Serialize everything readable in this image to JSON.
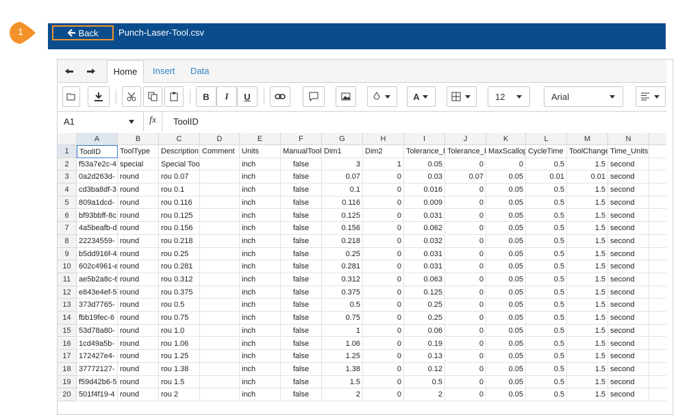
{
  "callout": "1",
  "header": {
    "back": "Back",
    "filename": "Punch-Laser-Tool.csv"
  },
  "tabs": [
    "Home",
    "Insert",
    "Data"
  ],
  "toolbar": {
    "bold": "B",
    "italic": "I",
    "underline": "U",
    "font_color": "A",
    "font_size": "12",
    "font": "Arial"
  },
  "formula_bar": {
    "cell": "A1",
    "fx": "fx",
    "content": "ToolID"
  },
  "grid": {
    "columns": [
      "A",
      "B",
      "C",
      "D",
      "E",
      "F",
      "G",
      "H",
      "I",
      "J",
      "K",
      "L",
      "M",
      "N"
    ],
    "rows": [
      {
        "num": 1,
        "cells": [
          "ToolID",
          "ToolType",
          "Description",
          "Comment",
          "Units",
          "ManualTool",
          "Dim1",
          "Dim2",
          "Tolerance_I",
          "Tolerance_I",
          "MaxScallop",
          "CycleTime",
          "ToolChange",
          "Time_Units"
        ]
      },
      {
        "num": 2,
        "cells": [
          "f53a7e2c-4",
          "special",
          "Special Too",
          null,
          "inch",
          "false",
          "3",
          "1",
          "0.05",
          "0",
          "0",
          "0.5",
          "1.5",
          "second"
        ]
      },
      {
        "num": 3,
        "cells": [
          "0a2d263d-",
          "round",
          "rou 0.07",
          null,
          "inch",
          "false",
          "0.07",
          "0",
          "0.03",
          "0.07",
          "0.05",
          "0.01",
          "0.01",
          "second"
        ]
      },
      {
        "num": 4,
        "cells": [
          "cd3ba8df-3",
          "round",
          "rou 0.1",
          null,
          "inch",
          "false",
          "0.1",
          "0",
          "0.016",
          "0",
          "0.05",
          "0.5",
          "1.5",
          "second"
        ]
      },
      {
        "num": 5,
        "cells": [
          "809a1dcd-",
          "round",
          "rou 0.116",
          null,
          "inch",
          "false",
          "0.116",
          "0",
          "0.009",
          "0",
          "0.05",
          "0.5",
          "1.5",
          "second"
        ]
      },
      {
        "num": 6,
        "cells": [
          "bf93bbff-8c",
          "round",
          "rou 0.125",
          null,
          "inch",
          "false",
          "0.125",
          "0",
          "0.031",
          "0",
          "0.05",
          "0.5",
          "1.5",
          "second"
        ]
      },
      {
        "num": 7,
        "cells": [
          "4a5beafb-d",
          "round",
          "rou 0.156",
          null,
          "inch",
          "false",
          "0.156",
          "0",
          "0.062",
          "0",
          "0.05",
          "0.5",
          "1.5",
          "second"
        ]
      },
      {
        "num": 8,
        "cells": [
          "22234559-",
          "round",
          "rou 0.218",
          null,
          "inch",
          "false",
          "0.218",
          "0",
          "0.032",
          "0",
          "0.05",
          "0.5",
          "1.5",
          "second"
        ]
      },
      {
        "num": 9,
        "cells": [
          "b5dd916f-4",
          "round",
          "rou 0.25",
          null,
          "inch",
          "false",
          "0.25",
          "0",
          "0.031",
          "0",
          "0.05",
          "0.5",
          "1.5",
          "second"
        ]
      },
      {
        "num": 10,
        "cells": [
          "602c4961-e",
          "round",
          "rou 0.281",
          null,
          "inch",
          "false",
          "0.281",
          "0",
          "0.031",
          "0",
          "0.05",
          "0.5",
          "1.5",
          "second"
        ]
      },
      {
        "num": 11,
        "cells": [
          "ae5b2a8c-6",
          "round",
          "rou 0.312",
          null,
          "inch",
          "false",
          "0.312",
          "0",
          "0.063",
          "0",
          "0.05",
          "0.5",
          "1.5",
          "second"
        ]
      },
      {
        "num": 12,
        "cells": [
          "e843e4ef-5",
          "round",
          "rou 0.375",
          null,
          "inch",
          "false",
          "0.375",
          "0",
          "0.125",
          "0",
          "0.05",
          "0.5",
          "1.5",
          "second"
        ]
      },
      {
        "num": 13,
        "cells": [
          "373d7765-",
          "round",
          "rou 0.5",
          null,
          "inch",
          "false",
          "0.5",
          "0",
          "0.25",
          "0",
          "0.05",
          "0.5",
          "1.5",
          "second"
        ]
      },
      {
        "num": 14,
        "cells": [
          "fbb19fec-6",
          "round",
          "rou 0.75",
          null,
          "inch",
          "false",
          "0.75",
          "0",
          "0.25",
          "0",
          "0.05",
          "0.5",
          "1.5",
          "second"
        ]
      },
      {
        "num": 15,
        "cells": [
          "53d78a80-",
          "round",
          "rou 1.0",
          null,
          "inch",
          "false",
          "1",
          "0",
          "0.06",
          "0",
          "0.05",
          "0.5",
          "1.5",
          "second"
        ]
      },
      {
        "num": 16,
        "cells": [
          "1cd49a5b-",
          "round",
          "rou 1.06",
          null,
          "inch",
          "false",
          "1.06",
          "0",
          "0.19",
          "0",
          "0.05",
          "0.5",
          "1.5",
          "second"
        ]
      },
      {
        "num": 17,
        "cells": [
          "172427e4-",
          "round",
          "rou 1.25",
          null,
          "inch",
          "false",
          "1.25",
          "0",
          "0.13",
          "0",
          "0.05",
          "0.5",
          "1.5",
          "second"
        ]
      },
      {
        "num": 18,
        "cells": [
          "37772127-",
          "round",
          "rou 1.38",
          null,
          "inch",
          "false",
          "1.38",
          "0",
          "0.12",
          "0",
          "0.05",
          "0.5",
          "1.5",
          "second"
        ]
      },
      {
        "num": 19,
        "cells": [
          "f59d42b6-5",
          "round",
          "rou 1.5",
          null,
          "inch",
          "false",
          "1.5",
          "0",
          "0.5",
          "0",
          "0.05",
          "0.5",
          "1.5",
          "second"
        ]
      },
      {
        "num": 20,
        "cells": [
          "501f4f19-4",
          "round",
          "rou 2",
          null,
          "inch",
          "false",
          "2",
          "0",
          "2",
          "0",
          "0.05",
          "0.5",
          "1.5",
          "second"
        ]
      }
    ]
  }
}
